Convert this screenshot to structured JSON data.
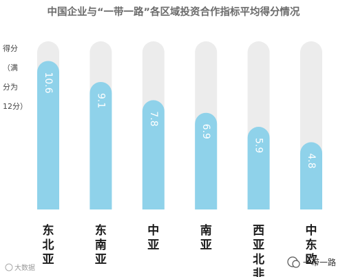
{
  "chart_data": {
    "type": "bar",
    "title": "中国企业与“一带一路”各区域投资合作指标平均得分情况",
    "ylabel_lines": [
      "得分",
      "（满",
      "分为",
      "12分）"
    ],
    "categories": [
      "东北亚",
      "东南亚",
      "中亚",
      "南亚",
      "西亚北非",
      "中东欧"
    ],
    "values": [
      10.6,
      9.1,
      7.8,
      6.9,
      5.9,
      4.8
    ],
    "value_labels": [
      "10.6",
      "9.1",
      "7.8",
      "6.9",
      "5.9",
      "4.8"
    ],
    "ylim": [
      0,
      12
    ],
    "grid": false,
    "colors": {
      "bar": "#8fd2ea",
      "track": "#ececec",
      "text_on_bar": "#ffffff"
    }
  },
  "watermark_left": "大数据",
  "watermark_right": "一带一路"
}
